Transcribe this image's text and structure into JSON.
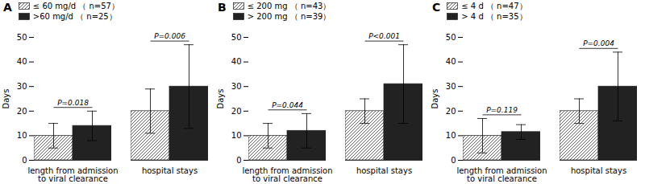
{
  "chart_data": [
    {
      "type": "bar",
      "title": "A",
      "ylabel": "Days",
      "categories": [
        "length from admission\nto viral clearance",
        "hospital stays"
      ],
      "series": [
        {
          "name": "≤ 60 mg/d （ n=57）",
          "color": "#222222",
          "values": [
            10,
            20
          ],
          "errors": [
            5,
            9
          ]
        },
        {
          "name": ">60 mg/d （ n=25）",
          "color": "#222222",
          "values": [
            14,
            30
          ],
          "errors": [
            6,
            17
          ]
        }
      ],
      "annotations": [
        {
          "category": "length from admission\nto viral clearance",
          "text": "P=0.018"
        },
        {
          "category": "hospital stays",
          "text": "P=0.006"
        }
      ],
      "ylim": [
        0,
        50
      ],
      "yticks": [
        0,
        10,
        20,
        30,
        40,
        50
      ],
      "grid": false,
      "legend": "upper left"
    },
    {
      "type": "bar",
      "title": "B",
      "ylabel": "Days",
      "categories": [
        "length from admission\nto viral clearance",
        "hospital stays"
      ],
      "series": [
        {
          "name": "≤ 200 mg （ n=43）",
          "color": "#222222",
          "values": [
            10,
            20
          ],
          "errors": [
            5,
            5
          ]
        },
        {
          "name": "> 200 mg （ n=39）",
          "color": "#222222",
          "values": [
            12,
            31
          ],
          "errors": [
            7,
            16
          ]
        }
      ],
      "annotations": [
        {
          "category": "length from admission\nto viral clearance",
          "text": "P=0.044"
        },
        {
          "category": "hospital stays",
          "text": "P<0.001"
        }
      ],
      "ylim": [
        0,
        50
      ],
      "yticks": [
        0,
        10,
        20,
        30,
        40,
        50
      ],
      "grid": false,
      "legend": "upper left"
    },
    {
      "type": "bar",
      "title": "C",
      "ylabel": "Days",
      "categories": [
        "length from admission\nto viral clearance",
        "hospital stays"
      ],
      "series": [
        {
          "name": "≤ 4 d （ n=47）",
          "color": "#222222",
          "values": [
            10,
            20
          ],
          "errors": [
            7,
            5
          ]
        },
        {
          "name": "> 4 d （ n=35）",
          "color": "#222222",
          "values": [
            11.5,
            30
          ],
          "errors": [
            3,
            14
          ]
        }
      ],
      "annotations": [
        {
          "category": "length from admission\nto viral clearance",
          "text": "P=0.119"
        },
        {
          "category": "hospital stays",
          "text": "P=0.004"
        }
      ],
      "ylim": [
        0,
        50
      ],
      "yticks": [
        0,
        10,
        20,
        30,
        40,
        50
      ],
      "grid": false,
      "legend": "upper left"
    }
  ]
}
